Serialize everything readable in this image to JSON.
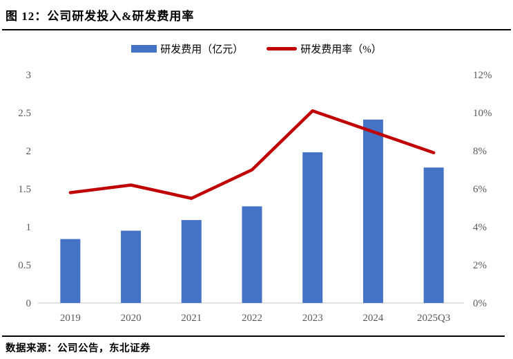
{
  "page": {
    "title": "图  12：公司研发投入&研发费用率",
    "source": "数据来源：公司公告，东北证券"
  },
  "legend": [
    {
      "label": "研发费用（亿元）",
      "type": "bar",
      "color": "#4472C4"
    },
    {
      "label": "研发费用率（%）",
      "type": "line",
      "color": "#C00000"
    }
  ],
  "colors": {
    "bar": "#4472C4",
    "line": "#C00000",
    "axis_text": "#595959",
    "baseline": "#D9D9D9",
    "rule": "#000000"
  },
  "chart_data": {
    "type": "bar+line combo, dual axis",
    "title": "公司研发投入&研发费用率",
    "categories": [
      "2019",
      "2020",
      "2021",
      "2022",
      "2023",
      "2024",
      "2025Q3"
    ],
    "series": [
      {
        "name": "研发费用（亿元）",
        "type": "bar",
        "axis": "left",
        "color": "#4472C4",
        "values": [
          0.84,
          0.95,
          1.09,
          1.27,
          1.98,
          2.41,
          1.78
        ]
      },
      {
        "name": "研发费用率（%）",
        "type": "line",
        "axis": "right",
        "color": "#C00000",
        "values": [
          5.8,
          6.2,
          5.5,
          7.0,
          10.1,
          9.0,
          7.9
        ]
      }
    ],
    "left_axis": {
      "min": 0,
      "max": 3,
      "ticks": [
        "0",
        "0.5",
        "1",
        "1.5",
        "2",
        "2.5",
        "3"
      ]
    },
    "right_axis": {
      "min": 0,
      "max": 12,
      "ticks": [
        "0%",
        "2%",
        "4%",
        "6%",
        "8%",
        "10%",
        "12%"
      ]
    },
    "grid": false,
    "legend_position": "top"
  }
}
